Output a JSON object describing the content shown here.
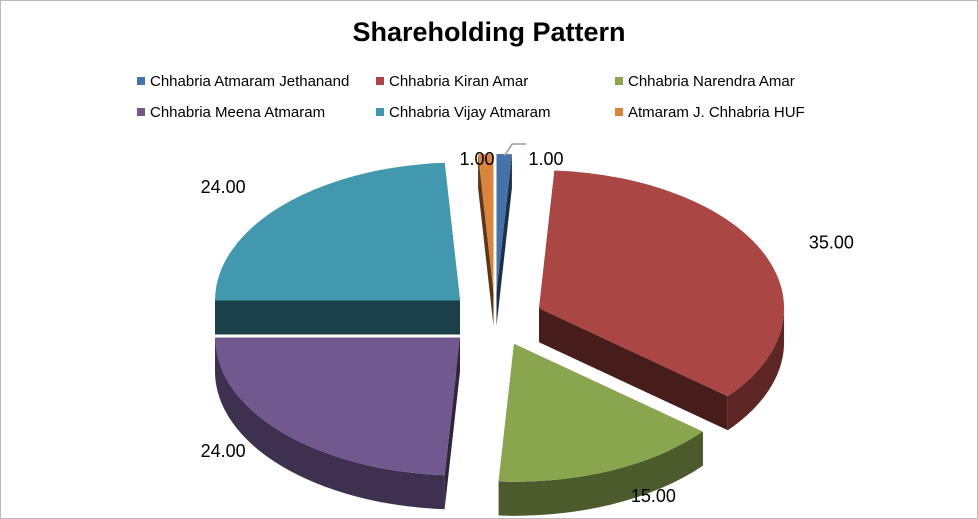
{
  "chart_data": {
    "type": "pie",
    "title": "Shareholding Pattern",
    "categories": [
      "Chhabria Atmaram Jethanand",
      "Chhabria Kiran Amar",
      "Chhabria Narendra Amar",
      "Chhabria Meena Atmaram",
      "Chhabria Vijay Atmaram",
      "Atmaram J. Chhabria HUF"
    ],
    "values": [
      1,
      35,
      15,
      24,
      24,
      1
    ],
    "value_labels": [
      "1.00",
      "35.00",
      "15.00",
      "24.00",
      "24.00",
      "1.00"
    ],
    "colors": [
      "#4572A7",
      "#AA4643",
      "#89A54E",
      "#71588F",
      "#4198AF",
      "#DB843D"
    ],
    "style": "3d-exploded",
    "legend_position": "top"
  }
}
